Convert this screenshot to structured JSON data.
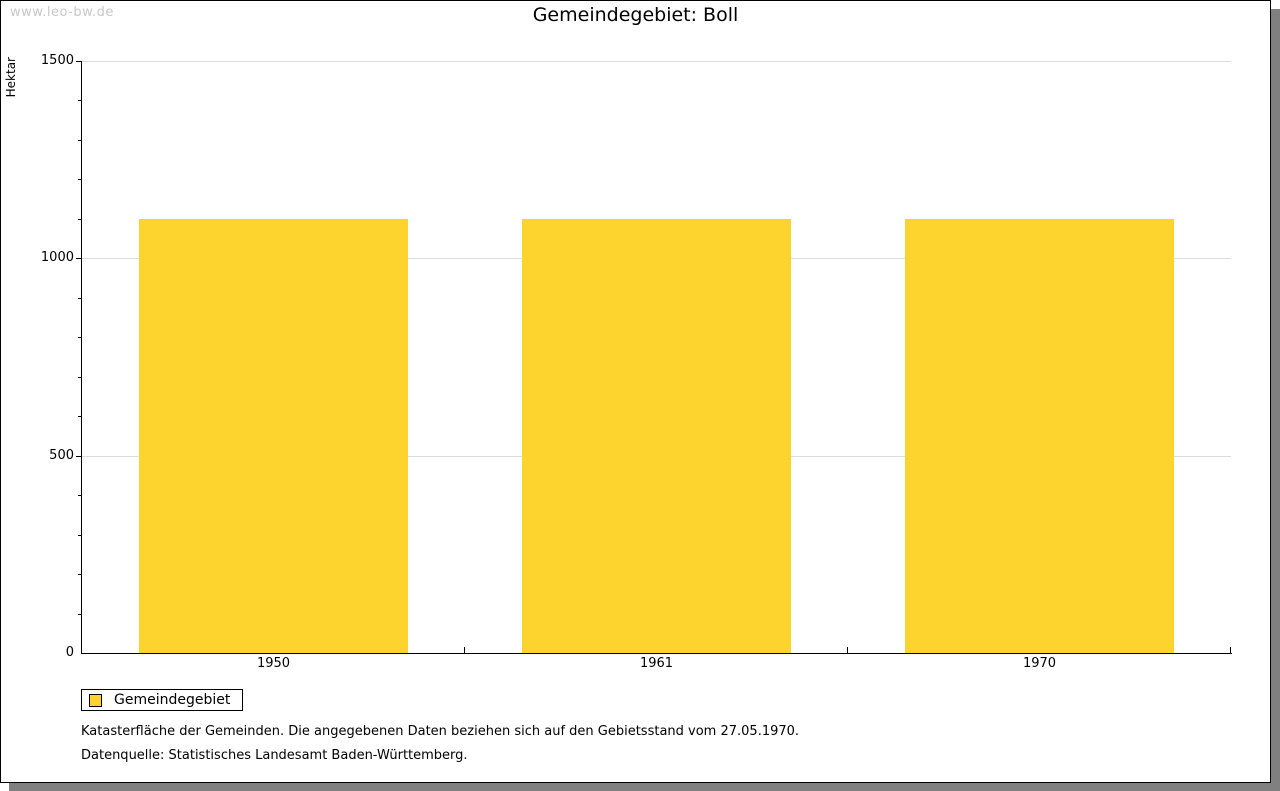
{
  "watermark": "www.leo-bw.de",
  "chart_data": {
    "type": "bar",
    "title": "Gemeindegebiet: Boll",
    "categories": [
      "1950",
      "1961",
      "1970"
    ],
    "series": [
      {
        "name": "Gemeindegebiet",
        "values": [
          1100,
          1100,
          1100
        ]
      }
    ],
    "xlabel": "",
    "ylabel": "Hektar",
    "ylim": [
      0,
      1500
    ],
    "yticks_labeled": [
      0,
      500,
      1000,
      1500
    ],
    "ytick_minor_step": 100,
    "grid": true,
    "legend_position": "bottom-left"
  },
  "legend": {
    "label": "Gemeindegebiet",
    "swatch_color": "#FCD42D"
  },
  "footnotes": [
    "Katasterfläche der Gemeinden. Die angegebenen Daten beziehen sich auf den Gebietsstand vom 27.05.1970.",
    "Datenquelle: Statistisches Landesamt Baden-Württemberg."
  ],
  "colors": {
    "bar": "#FCD42D",
    "grid": "#DCDCDC",
    "axis": "#000000",
    "text": "#000000",
    "watermark": "#C8C8C8",
    "shadow": "#808080",
    "background": "#FFFFFF"
  }
}
